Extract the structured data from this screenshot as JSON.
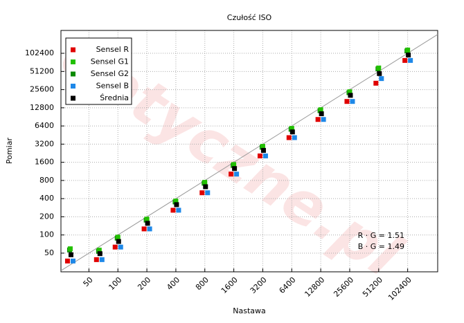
{
  "chart_data": {
    "type": "scatter",
    "title": "Czułość ISO",
    "x_label": "Nastawa",
    "y_label": "Pomiar",
    "watermark": "optyczne.pl",
    "annotations": [
      "R · G = 1.51",
      "B · G = 1.49"
    ],
    "log_x": true,
    "log_y": true,
    "grid": true,
    "reference_line": true,
    "legend": "upper left",
    "x": [
      32,
      64,
      100,
      200,
      400,
      800,
      1600,
      3200,
      6400,
      12800,
      25600,
      51200,
      102400
    ],
    "series": [
      {
        "name": "Sensel R",
        "color": "#e00000",
        "values": [
          37,
          39,
          63,
          126,
          257,
          500,
          1020,
          2040,
          4100,
          8200,
          16300,
          32700,
          78000
        ]
      },
      {
        "name": "Sensel G1",
        "color": "#22c000",
        "values": [
          59,
          56,
          92,
          183,
          365,
          745,
          1470,
          2940,
          5830,
          11900,
          23600,
          58500,
          116000
        ]
      },
      {
        "name": "Sensel G2",
        "color": "#0a8a00",
        "values": [
          58,
          55,
          91,
          181,
          362,
          740,
          1460,
          2920,
          5800,
          11800,
          23400,
          58000,
          115000
        ]
      },
      {
        "name": "Sensel B",
        "color": "#1e88e8",
        "values": [
          37,
          39,
          63,
          126,
          257,
          500,
          1020,
          2040,
          4100,
          8200,
          16300,
          39000,
          78000
        ]
      },
      {
        "name": "Średnia",
        "color": "#000000",
        "values": [
          47,
          49,
          78,
          156,
          318,
          630,
          1260,
          2520,
          5100,
          10200,
          20600,
          47300,
          96000
        ]
      }
    ],
    "xlim": [
      25.6,
      210000
    ],
    "ylim": [
      24.5,
      245000
    ],
    "xticks": [
      50,
      100,
      200,
      400,
      800,
      1600,
      3200,
      6400,
      12800,
      25600,
      51200,
      102400
    ],
    "yticks": [
      50,
      100,
      200,
      400,
      800,
      1600,
      3200,
      6400,
      12800,
      25600,
      51200,
      102400
    ]
  }
}
